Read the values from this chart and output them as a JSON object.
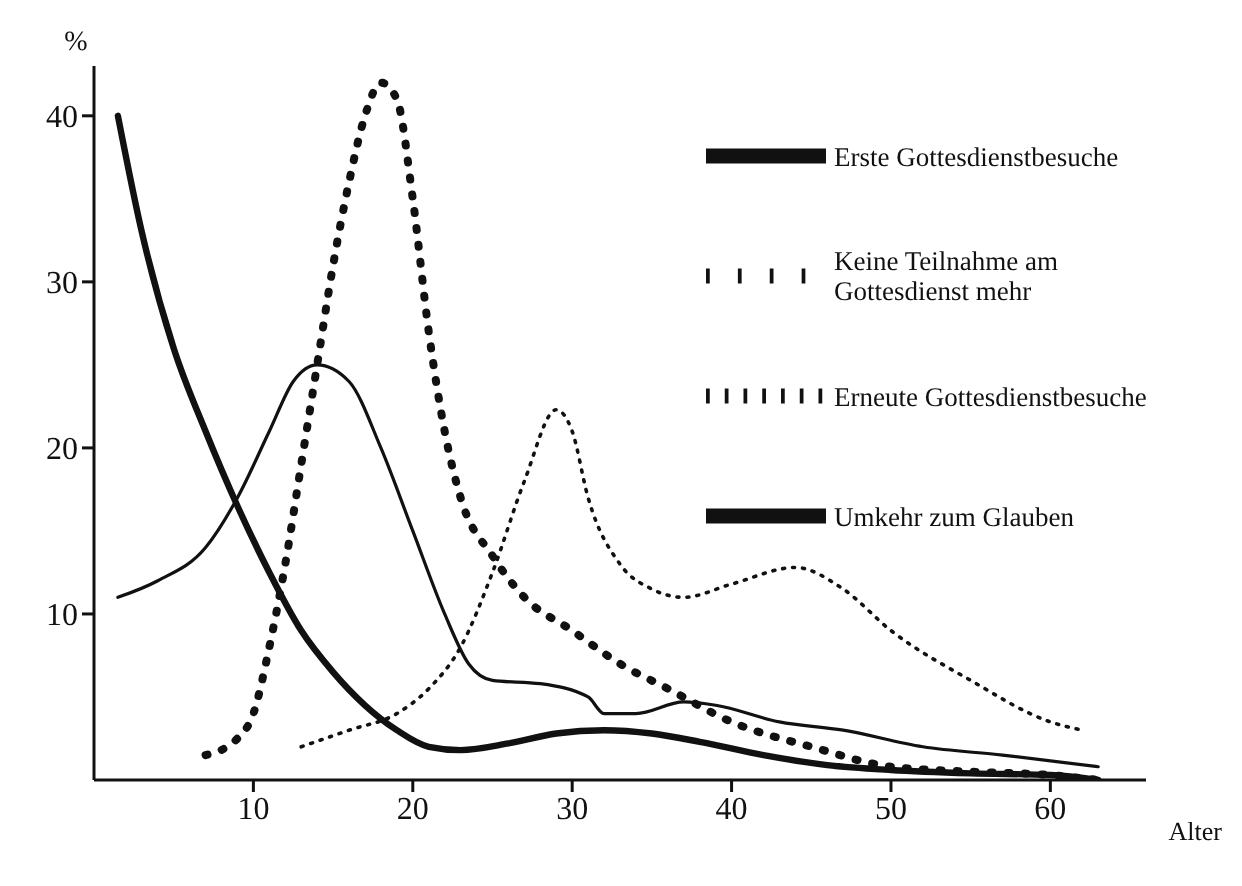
{
  "chart_data": {
    "type": "line",
    "xlabel": "Alter",
    "ylabel": "%",
    "xlim": [
      0,
      66
    ],
    "xticks": [
      10,
      20,
      30,
      40,
      50,
      60
    ],
    "ylim": [
      0,
      43
    ],
    "yticks": [
      10,
      20,
      30,
      40
    ],
    "legend": "top right",
    "marker": "none",
    "series": [
      {
        "name": "Erste Gottesdienstbesuche",
        "color": "#111111",
        "line_style": "solid",
        "x": [
          1.5,
          3,
          5,
          7,
          9,
          11,
          13,
          15,
          17,
          19,
          21,
          23,
          26,
          29,
          32,
          35,
          38,
          42,
          46,
          50,
          55,
          60,
          63
        ],
        "values": [
          40,
          33,
          26,
          21,
          16.5,
          12.5,
          9,
          6.5,
          4.5,
          3,
          2,
          1.8,
          2.2,
          2.8,
          3,
          2.8,
          2.3,
          1.5,
          0.9,
          0.6,
          0.4,
          0.3,
          0
        ]
      },
      {
        "name": "Keine Teilnahme am Gottesdienst mehr",
        "color": "#111111",
        "line_style": "dotted",
        "x": [
          7,
          9,
          10,
          11,
          12,
          13,
          14,
          15,
          16,
          17,
          18,
          19,
          20,
          21,
          22,
          23,
          25,
          27,
          30,
          33,
          36,
          40,
          45,
          50,
          55,
          60,
          63
        ],
        "values": [
          1.5,
          2.5,
          4,
          8,
          13,
          19,
          25,
          31,
          36,
          40,
          42,
          41,
          35,
          27,
          21,
          17,
          13.5,
          11,
          9,
          7,
          5.5,
          3.5,
          2,
          0.8,
          0.5,
          0.3,
          0
        ]
      },
      {
        "name": "Erneute Gottesdienstbesuche",
        "color": "#111111",
        "line_style": "dotted",
        "x": [
          13,
          16,
          19,
          21,
          23,
          25,
          27,
          29,
          30,
          31,
          33,
          35,
          37,
          40,
          44,
          47,
          50,
          55,
          60,
          62
        ],
        "values": [
          2,
          3,
          4,
          5.5,
          8,
          12.5,
          18,
          22.3,
          21,
          17,
          13,
          11.5,
          11,
          11.8,
          12.8,
          11.5,
          9,
          6,
          3.5,
          3
        ]
      },
      {
        "name": "Umkehr zum Glauben",
        "color": "#111111",
        "line_style": "solid",
        "x": [
          1.5,
          4,
          7,
          9,
          11,
          12.5,
          14,
          16,
          18,
          20,
          22,
          23.5,
          25,
          28,
          31,
          32,
          34,
          37,
          39,
          43,
          47,
          52,
          57,
          63
        ],
        "values": [
          11,
          12,
          14,
          17,
          21,
          24,
          25,
          24,
          20,
          15,
          10,
          7,
          6,
          5.8,
          5,
          4,
          4,
          4.7,
          4.5,
          3.5,
          3,
          2,
          1.5,
          0.8
        ]
      }
    ]
  }
}
